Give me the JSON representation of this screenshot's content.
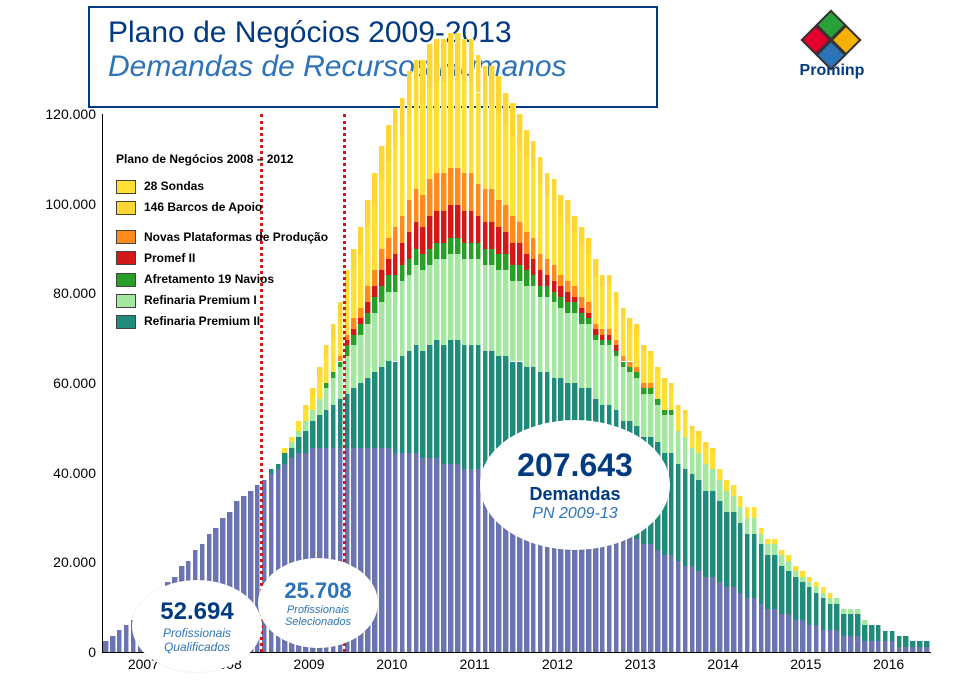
{
  "title": {
    "line1": "Plano de Negócios 2009-2013",
    "line2": "Demandas de Recursos Humanos"
  },
  "logo": {
    "text": "Prominp",
    "diamond_colors": [
      "#2aa038",
      "#e4002b",
      "#f6b000",
      "#2d73b7"
    ]
  },
  "chart": {
    "type": "stacked-bar-area",
    "background_color": "#ffffff",
    "ylim": [
      0,
      120000
    ],
    "ytick_step": 20000,
    "yticks_labels": [
      "0",
      "20.000",
      "40.000",
      "60.000",
      "80.000",
      "100.000",
      "120.000"
    ],
    "x_years": [
      "2007",
      "2008",
      "2009",
      "2010",
      "2011",
      "2012",
      "2013",
      "2014",
      "2015",
      "2016"
    ],
    "n_bars": 120,
    "series_colors": {
      "base": "#6a74b1",
      "teal": "#1e8b7b",
      "lgreen": "#a4e7a0",
      "green": "#28a028",
      "red": "#d31818",
      "orange": "#ff8c1a",
      "yellow": "#ffe033",
      "yellow2": "#ffd733"
    },
    "dash_markers": [
      {
        "year_fraction": 2008.9,
        "color": "#d31818"
      },
      {
        "year_fraction": 2009.9,
        "color": "#d31818"
      }
    ],
    "legend": {
      "header": "Plano de Negócios 2008 – 2012",
      "sondas": "28 Sondas",
      "barcos": "146 Barcos de Apoio",
      "plataformas": "Novas Plataformas de Produção",
      "promef": "Promef II",
      "afret": "Afretamento 19 Navios",
      "ref1": "Refinaria Premium I",
      "ref2": "Refinaria Premium II"
    },
    "callouts": {
      "main": {
        "value": "207.643",
        "label": "Demandas",
        "sub": "PN 2009-13"
      },
      "left": {
        "value": "52.694",
        "label1": "Profissionais",
        "label2": "Qualificados"
      },
      "mid": {
        "value": "25.708",
        "label1": "Profissionais",
        "label2": "Selecionados"
      }
    },
    "profile": {
      "comment": "fractions of ylim per layer, sampled ~monthly across 2007-2016",
      "base": [
        0.02,
        0.03,
        0.04,
        0.05,
        0.06,
        0.07,
        0.08,
        0.1,
        0.11,
        0.13,
        0.14,
        0.16,
        0.17,
        0.19,
        0.2,
        0.22,
        0.23,
        0.25,
        0.26,
        0.28,
        0.29,
        0.3,
        0.31,
        0.32,
        0.33,
        0.34,
        0.35,
        0.36,
        0.37,
        0.37,
        0.38,
        0.38,
        0.38,
        0.38,
        0.38,
        0.38,
        0.38,
        0.38,
        0.38,
        0.38,
        0.38,
        0.38,
        0.37,
        0.37,
        0.37,
        0.37,
        0.36,
        0.36,
        0.36,
        0.35,
        0.35,
        0.35,
        0.34,
        0.34,
        0.34,
        0.33,
        0.33,
        0.32,
        0.32,
        0.31,
        0.31,
        0.3,
        0.3,
        0.29,
        0.29,
        0.28,
        0.28,
        0.27,
        0.27,
        0.26,
        0.26,
        0.25,
        0.24,
        0.24,
        0.23,
        0.22,
        0.22,
        0.21,
        0.2,
        0.2,
        0.19,
        0.18,
        0.18,
        0.17,
        0.16,
        0.16,
        0.15,
        0.14,
        0.14,
        0.13,
        0.12,
        0.12,
        0.11,
        0.1,
        0.1,
        0.09,
        0.08,
        0.08,
        0.07,
        0.07,
        0.06,
        0.06,
        0.05,
        0.05,
        0.04,
        0.04,
        0.04,
        0.03,
        0.03,
        0.03,
        0.02,
        0.02,
        0.02,
        0.02,
        0.02,
        0.01,
        0.01,
        0.01,
        0.01,
        0.01
      ],
      "teal": [
        0,
        0,
        0,
        0,
        0,
        0,
        0,
        0,
        0,
        0,
        0,
        0,
        0,
        0,
        0,
        0,
        0,
        0,
        0,
        0,
        0,
        0,
        0,
        0,
        0.01,
        0.01,
        0.02,
        0.02,
        0.03,
        0.04,
        0.05,
        0.06,
        0.07,
        0.08,
        0.09,
        0.1,
        0.11,
        0.12,
        0.13,
        0.14,
        0.15,
        0.16,
        0.17,
        0.18,
        0.19,
        0.2,
        0.2,
        0.21,
        0.22,
        0.22,
        0.23,
        0.23,
        0.23,
        0.23,
        0.23,
        0.23,
        0.23,
        0.23,
        0.23,
        0.23,
        0.23,
        0.23,
        0.23,
        0.23,
        0.23,
        0.23,
        0.23,
        0.23,
        0.23,
        0.23,
        0.23,
        0.22,
        0.22,
        0.22,
        0.22,
        0.21,
        0.21,
        0.21,
        0.2,
        0.2,
        0.2,
        0.19,
        0.19,
        0.18,
        0.18,
        0.17,
        0.17,
        0.16,
        0.16,
        0.15,
        0.14,
        0.14,
        0.13,
        0.12,
        0.12,
        0.11,
        0.1,
        0.1,
        0.09,
        0.08,
        0.08,
        0.07,
        0.07,
        0.06,
        0.06,
        0.05,
        0.05,
        0.04,
        0.04,
        0.04,
        0.03,
        0.03,
        0.03,
        0.02,
        0.02,
        0.02,
        0.02,
        0.01,
        0.01,
        0.01
      ],
      "lgreen": [
        0,
        0,
        0,
        0,
        0,
        0,
        0,
        0,
        0,
        0,
        0,
        0,
        0,
        0,
        0,
        0,
        0,
        0,
        0,
        0,
        0,
        0,
        0,
        0,
        0,
        0,
        0,
        0.01,
        0.01,
        0.02,
        0.02,
        0.03,
        0.04,
        0.05,
        0.06,
        0.07,
        0.08,
        0.09,
        0.1,
        0.11,
        0.12,
        0.13,
        0.13,
        0.14,
        0.14,
        0.15,
        0.15,
        0.15,
        0.15,
        0.16,
        0.16,
        0.16,
        0.16,
        0.16,
        0.16,
        0.16,
        0.16,
        0.16,
        0.16,
        0.15,
        0.15,
        0.15,
        0.15,
        0.14,
        0.14,
        0.14,
        0.13,
        0.13,
        0.13,
        0.12,
        0.12,
        0.11,
        0.11,
        0.11,
        0.1,
        0.1,
        0.09,
        0.09,
        0.08,
        0.08,
        0.07,
        0.07,
        0.07,
        0.06,
        0.06,
        0.05,
        0.05,
        0.05,
        0.04,
        0.04,
        0.04,
        0.03,
        0.03,
        0.03,
        0.03,
        0.02,
        0.02,
        0.02,
        0.02,
        0.02,
        0.01,
        0.01,
        0.01,
        0.01,
        0.01,
        0.01,
        0.01,
        0.01,
        0.01,
        0.01,
        0.01,
        0,
        0,
        0,
        0,
        0,
        0,
        0,
        0,
        0
      ],
      "green": [
        0,
        0,
        0,
        0,
        0,
        0,
        0,
        0,
        0,
        0,
        0,
        0,
        0,
        0,
        0,
        0,
        0,
        0,
        0,
        0,
        0,
        0,
        0,
        0,
        0,
        0,
        0,
        0,
        0,
        0,
        0,
        0,
        0.01,
        0.01,
        0.01,
        0.02,
        0.02,
        0.02,
        0.02,
        0.03,
        0.03,
        0.03,
        0.03,
        0.03,
        0.03,
        0.03,
        0.03,
        0.03,
        0.03,
        0.03,
        0.03,
        0.03,
        0.03,
        0.03,
        0.03,
        0.03,
        0.03,
        0.03,
        0.03,
        0.03,
        0.03,
        0.03,
        0.02,
        0.02,
        0.02,
        0.02,
        0.02,
        0.02,
        0.02,
        0.02,
        0.01,
        0.01,
        0.01,
        0.01,
        0.01,
        0.01,
        0.01,
        0.01,
        0.01,
        0.01,
        0.01,
        0.01,
        0.01,
        0,
        0,
        0,
        0,
        0,
        0,
        0,
        0,
        0,
        0,
        0,
        0,
        0,
        0,
        0,
        0,
        0,
        0,
        0,
        0,
        0,
        0,
        0,
        0,
        0,
        0,
        0,
        0,
        0,
        0,
        0,
        0,
        0,
        0,
        0,
        0,
        0
      ],
      "red": [
        0,
        0,
        0,
        0,
        0,
        0,
        0,
        0,
        0,
        0,
        0,
        0,
        0,
        0,
        0,
        0,
        0,
        0,
        0,
        0,
        0,
        0,
        0,
        0,
        0,
        0,
        0,
        0,
        0,
        0,
        0,
        0,
        0,
        0,
        0,
        0.01,
        0.01,
        0.01,
        0.02,
        0.02,
        0.03,
        0.03,
        0.04,
        0.04,
        0.05,
        0.05,
        0.05,
        0.06,
        0.06,
        0.06,
        0.06,
        0.06,
        0.06,
        0.06,
        0.05,
        0.05,
        0.05,
        0.05,
        0.04,
        0.04,
        0.04,
        0.03,
        0.03,
        0.03,
        0.02,
        0.02,
        0.02,
        0.02,
        0.01,
        0.01,
        0.01,
        0.01,
        0.01,
        0.01,
        0.01,
        0,
        0,
        0,
        0,
        0,
        0,
        0,
        0,
        0,
        0,
        0,
        0,
        0,
        0,
        0,
        0,
        0,
        0,
        0,
        0,
        0,
        0,
        0,
        0,
        0,
        0,
        0,
        0,
        0,
        0,
        0,
        0,
        0,
        0,
        0,
        0,
        0,
        0,
        0,
        0,
        0,
        0,
        0,
        0,
        0
      ],
      "orange": [
        0,
        0,
        0,
        0,
        0,
        0,
        0,
        0,
        0,
        0,
        0,
        0,
        0,
        0,
        0,
        0,
        0,
        0,
        0,
        0,
        0,
        0,
        0,
        0,
        0,
        0,
        0,
        0,
        0,
        0,
        0,
        0,
        0,
        0,
        0.01,
        0.01,
        0.02,
        0.02,
        0.03,
        0.03,
        0.04,
        0.04,
        0.05,
        0.05,
        0.06,
        0.06,
        0.06,
        0.07,
        0.07,
        0.07,
        0.07,
        0.07,
        0.07,
        0.07,
        0.06,
        0.06,
        0.06,
        0.05,
        0.05,
        0.05,
        0.04,
        0.04,
        0.04,
        0.03,
        0.03,
        0.03,
        0.02,
        0.02,
        0.02,
        0.02,
        0.02,
        0.01,
        0.01,
        0.01,
        0.01,
        0.01,
        0.01,
        0.01,
        0.01,
        0.01,
        0,
        0,
        0,
        0,
        0,
        0,
        0,
        0,
        0,
        0,
        0,
        0,
        0,
        0,
        0,
        0,
        0,
        0,
        0,
        0,
        0,
        0,
        0,
        0,
        0,
        0,
        0,
        0,
        0,
        0,
        0,
        0,
        0,
        0,
        0,
        0,
        0,
        0,
        0,
        0
      ],
      "yellow": [
        0,
        0,
        0,
        0,
        0,
        0,
        0,
        0,
        0,
        0,
        0,
        0,
        0,
        0,
        0,
        0,
        0,
        0,
        0,
        0,
        0,
        0,
        0,
        0,
        0,
        0,
        0.01,
        0.01,
        0.02,
        0.02,
        0.03,
        0.04,
        0.05,
        0.06,
        0.07,
        0.08,
        0.09,
        0.1,
        0.11,
        0.12,
        0.13,
        0.14,
        0.15,
        0.15,
        0.16,
        0.16,
        0.17,
        0.17,
        0.17,
        0.17,
        0.17,
        0.17,
        0.17,
        0.17,
        0.17,
        0.16,
        0.16,
        0.16,
        0.15,
        0.15,
        0.14,
        0.14,
        0.13,
        0.13,
        0.12,
        0.12,
        0.11,
        0.11,
        0.1,
        0.1,
        0.09,
        0.09,
        0.08,
        0.08,
        0.07,
        0.07,
        0.06,
        0.06,
        0.06,
        0.05,
        0.05,
        0.05,
        0.04,
        0.04,
        0.04,
        0.03,
        0.03,
        0.03,
        0.03,
        0.02,
        0.02,
        0.02,
        0.02,
        0.02,
        0.02,
        0.01,
        0.01,
        0.01,
        0.01,
        0.01,
        0.01,
        0.01,
        0.01,
        0.01,
        0.01,
        0.01,
        0,
        0,
        0,
        0,
        0,
        0,
        0,
        0,
        0,
        0,
        0,
        0,
        0,
        0
      ],
      "yellow2": [
        0,
        0,
        0,
        0,
        0,
        0,
        0,
        0,
        0,
        0,
        0,
        0,
        0,
        0,
        0,
        0,
        0,
        0,
        0,
        0,
        0,
        0,
        0,
        0,
        0,
        0,
        0,
        0,
        0,
        0.01,
        0.01,
        0.02,
        0.02,
        0.03,
        0.03,
        0.04,
        0.04,
        0.05,
        0.05,
        0.06,
        0.06,
        0.07,
        0.07,
        0.07,
        0.08,
        0.08,
        0.08,
        0.08,
        0.08,
        0.08,
        0.08,
        0.08,
        0.08,
        0.08,
        0.07,
        0.07,
        0.07,
        0.07,
        0.06,
        0.06,
        0.06,
        0.05,
        0.05,
        0.05,
        0.04,
        0.04,
        0.04,
        0.04,
        0.03,
        0.03,
        0.03,
        0.03,
        0.02,
        0.02,
        0.02,
        0.02,
        0.02,
        0.02,
        0.01,
        0.01,
        0.01,
        0.01,
        0.01,
        0.01,
        0.01,
        0.01,
        0.01,
        0.01,
        0.01,
        0,
        0,
        0,
        0,
        0,
        0,
        0,
        0,
        0,
        0,
        0,
        0,
        0,
        0,
        0,
        0,
        0,
        0,
        0,
        0,
        0,
        0,
        0,
        0,
        0,
        0,
        0,
        0,
        0,
        0,
        0
      ]
    }
  }
}
